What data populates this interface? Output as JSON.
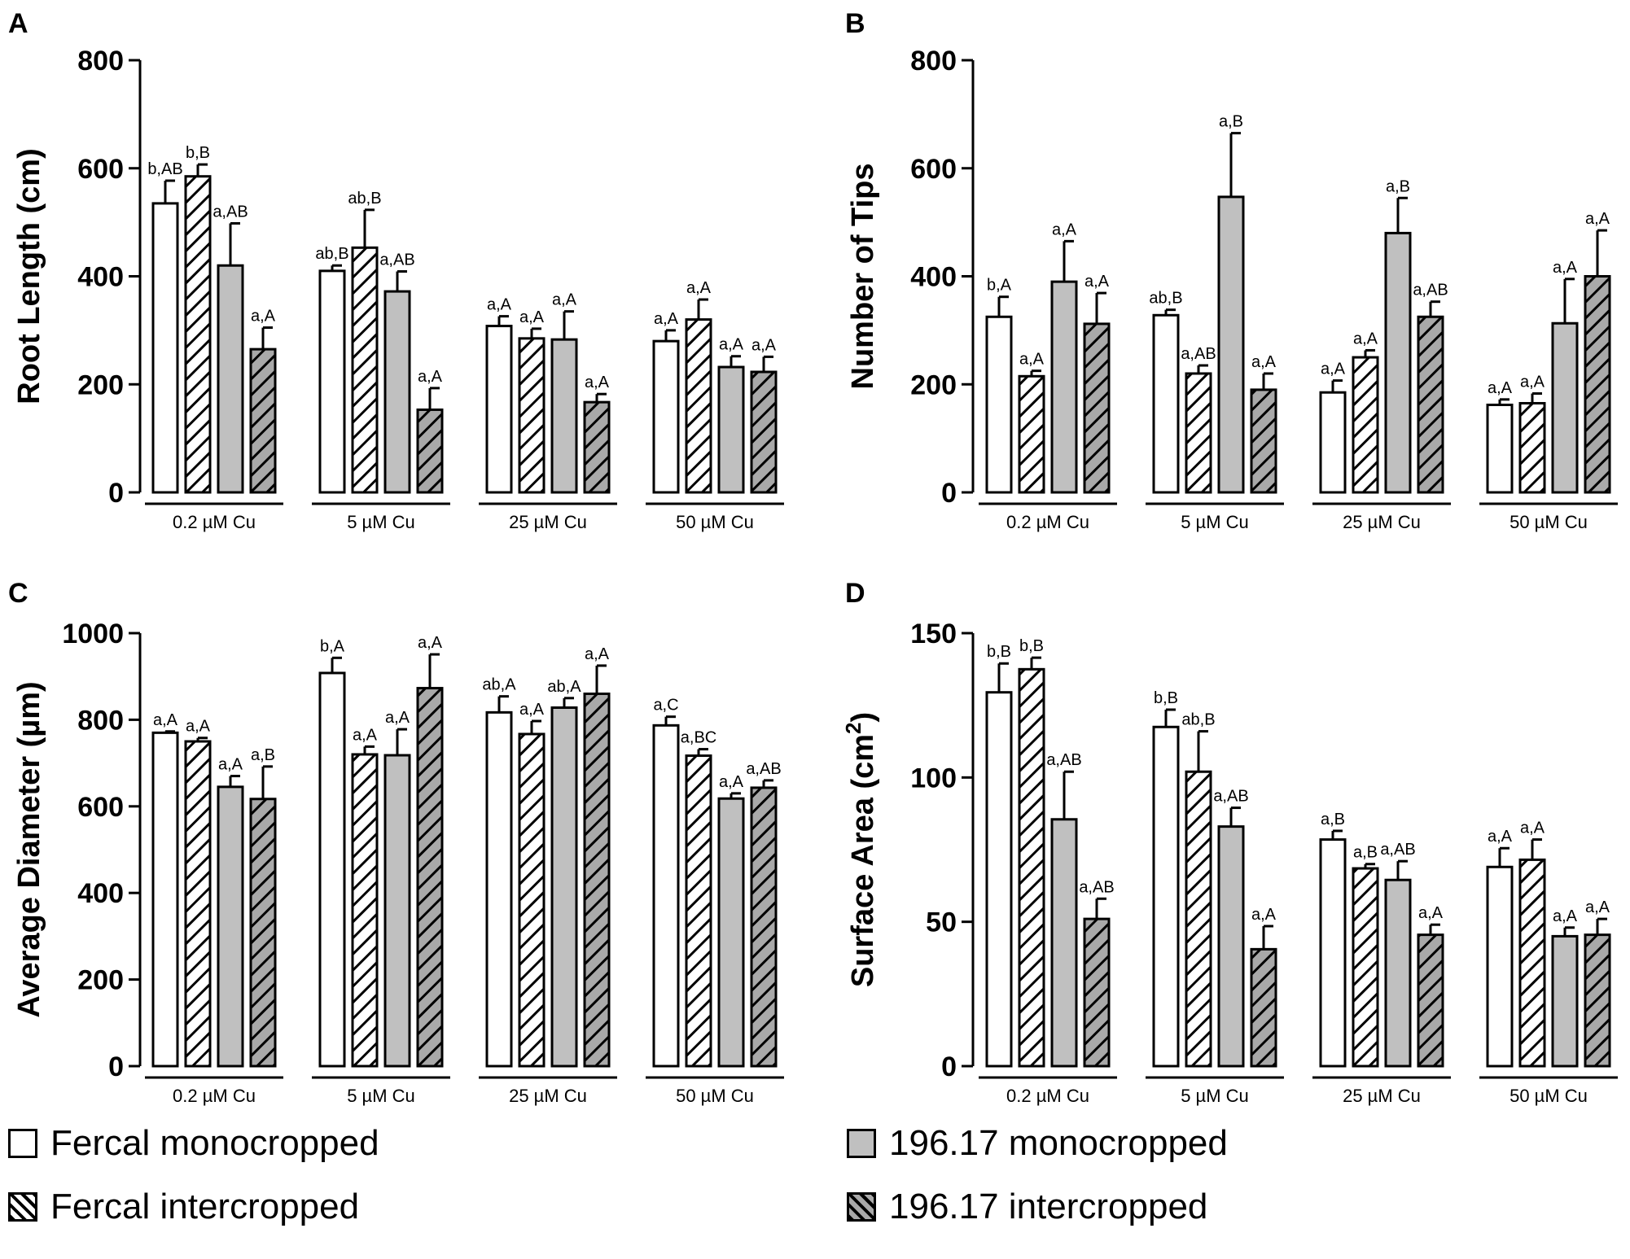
{
  "legend": [
    {
      "label": "Fercal monocropped",
      "fill": "white"
    },
    {
      "label": "Fercal intercropped",
      "fill": "hatch-white"
    },
    {
      "label": "196.17 monocropped",
      "fill": "grey"
    },
    {
      "label": "196.17 intercropped",
      "fill": "hatch-grey"
    }
  ],
  "colors": {
    "grey": "#c0c0c0",
    "black": "#000000",
    "white": "#ffffff"
  },
  "chart_data": [
    {
      "panel": "A",
      "type": "bar",
      "ylabel": "Root Length (cm)",
      "ylabel_sup": "",
      "ylabel_tail": "",
      "ylim": [
        0,
        800
      ],
      "yticks": [
        0,
        200,
        400,
        600,
        800
      ],
      "categories": [
        "0.2 µM Cu",
        "5 µM Cu",
        "25 µM Cu",
        "50 µM Cu"
      ],
      "series": [
        {
          "name": "Fercal monocropped",
          "values": [
            535,
            410,
            308,
            280
          ],
          "errors": [
            42,
            10,
            18,
            20
          ],
          "labels": [
            "b,AB",
            "ab,B",
            "a,A",
            "a,A"
          ]
        },
        {
          "name": "Fercal intercropped",
          "values": [
            585,
            453,
            285,
            320
          ],
          "errors": [
            22,
            70,
            18,
            37
          ],
          "labels": [
            "b,B",
            "ab,B",
            "a,A",
            "a,A"
          ]
        },
        {
          "name": "196.17 monocropped",
          "values": [
            420,
            372,
            283,
            232
          ],
          "errors": [
            78,
            37,
            52,
            20
          ],
          "labels": [
            "a,AB",
            "a,AB",
            "a,A",
            "a,A"
          ]
        },
        {
          "name": "196.17 intercropped",
          "values": [
            265,
            153,
            167,
            223
          ],
          "errors": [
            40,
            40,
            15,
            28
          ],
          "labels": [
            "a,A",
            "a,A",
            "a,A",
            "a,A"
          ]
        }
      ]
    },
    {
      "panel": "B",
      "type": "bar",
      "ylabel": "Number of Tips",
      "ylabel_sup": "",
      "ylabel_tail": "",
      "ylim": [
        0,
        800
      ],
      "yticks": [
        0,
        200,
        400,
        600,
        800
      ],
      "categories": [
        "0.2 µM Cu",
        "5 µM Cu",
        "25 µM Cu",
        "50 µM Cu"
      ],
      "series": [
        {
          "name": "Fercal monocropped",
          "values": [
            325,
            328,
            185,
            162
          ],
          "errors": [
            37,
            10,
            22,
            10
          ],
          "labels": [
            "b,A",
            "ab,B",
            "a,A",
            "a,A"
          ]
        },
        {
          "name": "Fercal intercropped",
          "values": [
            215,
            220,
            250,
            165
          ],
          "errors": [
            10,
            15,
            13,
            18
          ],
          "labels": [
            "a,A",
            "a,AB",
            "a,A",
            "a,A"
          ]
        },
        {
          "name": "196.17 monocropped",
          "values": [
            390,
            547,
            480,
            313
          ],
          "errors": [
            75,
            118,
            65,
            82
          ],
          "labels": [
            "a,A",
            "a,B",
            "a,B",
            "a,A"
          ]
        },
        {
          "name": "196.17 intercropped",
          "values": [
            312,
            190,
            325,
            400
          ],
          "errors": [
            57,
            30,
            28,
            85
          ],
          "labels": [
            "a,A",
            "a,A",
            "a,AB",
            "a,A"
          ]
        }
      ]
    },
    {
      "panel": "C",
      "type": "bar",
      "ylabel": "Average Diameter (µm)",
      "ylabel_sup": "",
      "ylabel_tail": "",
      "ylim": [
        0,
        1000
      ],
      "yticks": [
        0,
        200,
        400,
        600,
        800,
        1000
      ],
      "categories": [
        "0.2 µM Cu",
        "5 µM Cu",
        "25 µM Cu",
        "50 µM Cu"
      ],
      "series": [
        {
          "name": "Fercal monocropped",
          "values": [
            770,
            908,
            817,
            787
          ],
          "errors": [
            3,
            35,
            37,
            20
          ],
          "labels": [
            "a,A",
            "b,A",
            "ab,A",
            "a,C"
          ]
        },
        {
          "name": "Fercal intercropped",
          "values": [
            750,
            720,
            767,
            717
          ],
          "errors": [
            8,
            18,
            30,
            15
          ],
          "labels": [
            "a,A",
            "a,A",
            "a,A",
            "a,BC"
          ]
        },
        {
          "name": "196.17 monocropped",
          "values": [
            645,
            718,
            828,
            618
          ],
          "errors": [
            25,
            60,
            22,
            12
          ],
          "labels": [
            "a,A",
            "a,A",
            "ab,A",
            "a,A"
          ]
        },
        {
          "name": "196.17 intercropped",
          "values": [
            617,
            873,
            860,
            643
          ],
          "errors": [
            75,
            78,
            65,
            17
          ],
          "labels": [
            "a,B",
            "a,A",
            "a,A",
            "a,AB"
          ]
        }
      ]
    },
    {
      "panel": "D",
      "type": "bar",
      "ylabel": "Surface Area (cm",
      "ylabel_sup": "2",
      "ylabel_tail": ")",
      "ylim": [
        0,
        150
      ],
      "yticks": [
        0,
        50,
        100,
        150
      ],
      "categories": [
        "0.2 µM Cu",
        "5 µM Cu",
        "25 µM Cu",
        "50 µM Cu"
      ],
      "series": [
        {
          "name": "Fercal monocropped",
          "values": [
            129.5,
            117.5,
            78.5,
            69
          ],
          "errors": [
            10,
            6,
            3,
            6.5
          ],
          "labels": [
            "b,B",
            "b,B",
            "a,B",
            "a,A"
          ]
        },
        {
          "name": "Fercal intercropped",
          "values": [
            137.5,
            102,
            68.5,
            71.5
          ],
          "errors": [
            4,
            14,
            1.5,
            7
          ],
          "labels": [
            "b,B",
            "ab,B",
            "a,B",
            "a,A"
          ]
        },
        {
          "name": "196.17 monocropped",
          "values": [
            85.5,
            83,
            64.5,
            45
          ],
          "errors": [
            16.5,
            6.5,
            6.5,
            3
          ],
          "labels": [
            "a,AB",
            "a,AB",
            "a,AB",
            "a,A"
          ]
        },
        {
          "name": "196.17 intercropped",
          "values": [
            51,
            40.5,
            45.5,
            45.5
          ],
          "errors": [
            7,
            8,
            3.5,
            5.5
          ],
          "labels": [
            "a,AB",
            "a,A",
            "a,A",
            "a,A"
          ]
        }
      ]
    }
  ]
}
